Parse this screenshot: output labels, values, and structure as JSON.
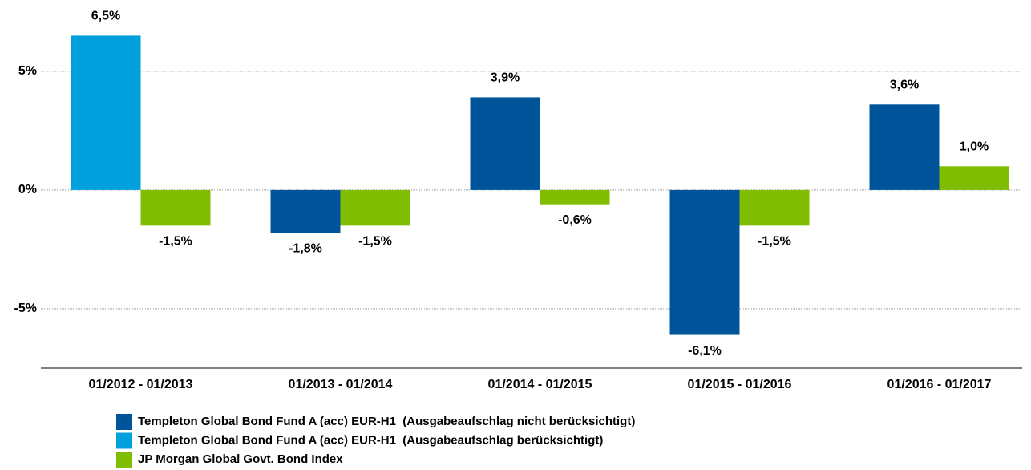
{
  "chart_data": {
    "type": "bar",
    "categories": [
      "01/2012 - 01/2013",
      "01/2013 - 01/2014",
      "01/2014 - 01/2015",
      "01/2015 - 01/2016",
      "01/2016 - 01/2017"
    ],
    "series": [
      {
        "name": "Templeton Global Bond Fund A (acc) EUR-H1  (Ausgabeaufschlag nicht berücksichtigt)",
        "color": "#00559a",
        "values": [
          null,
          -1.8,
          3.9,
          -6.1,
          3.6
        ],
        "value_labels": [
          null,
          "-1,8%",
          "3,9%",
          "-6,1%",
          "3,6%"
        ]
      },
      {
        "name": "Templeton Global Bond Fund A (acc) EUR-H1  (Ausgabeaufschlag berücksichtigt)",
        "color": "#00a0dc",
        "values": [
          6.5,
          null,
          null,
          null,
          null
        ],
        "value_labels": [
          "6,5%",
          null,
          null,
          null,
          null
        ]
      },
      {
        "name": "JP Morgan Global Govt. Bond Index",
        "color": "#80bc00",
        "values": [
          -1.5,
          -1.5,
          -0.6,
          -1.5,
          1.0
        ],
        "value_labels": [
          "-1,5%",
          "-1,5%",
          "-0,6%",
          "-1,5%",
          "1,0%"
        ]
      }
    ],
    "ylim": [
      -7.5,
      8
    ],
    "yticks": [
      {
        "value": -5,
        "label": "-5%"
      },
      {
        "value": 0,
        "label": "0%"
      },
      {
        "value": 5,
        "label": "5%"
      }
    ],
    "grid": true
  }
}
